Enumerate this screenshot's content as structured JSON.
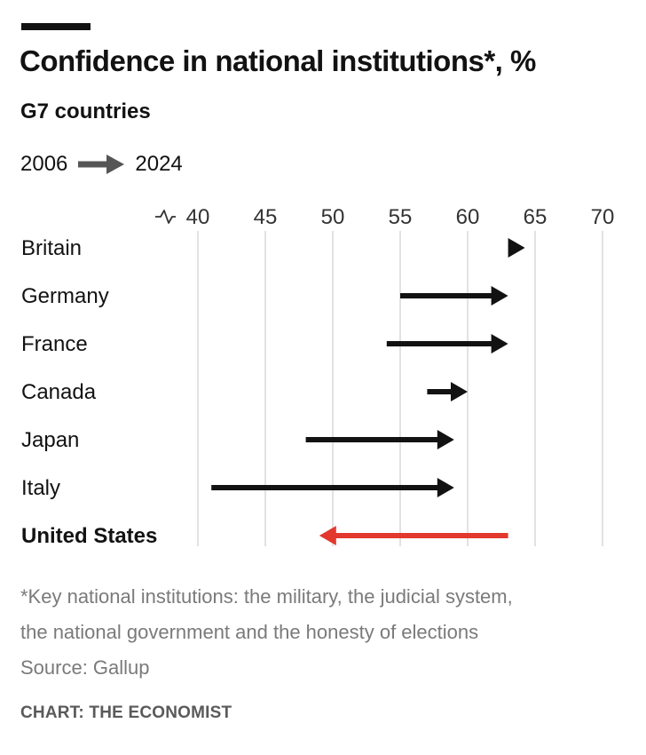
{
  "header": {
    "title": "Confidence in national institutions*, %",
    "subtitle": "G7 countries",
    "legend_start": "2006",
    "legend_end": "2024"
  },
  "chart_data": {
    "type": "dumbbell-arrow",
    "title": "Confidence in national institutions*, %",
    "subtitle": "G7 countries",
    "x_axis": {
      "ticks": [
        40,
        45,
        50,
        55,
        60,
        65,
        70
      ],
      "range": [
        40,
        70
      ],
      "broken_axis_marker": true,
      "grid": true
    },
    "series_labels": {
      "start": "2006",
      "end": "2024"
    },
    "rows": [
      {
        "country": "Britain",
        "start": 63,
        "end": 64,
        "highlight": false
      },
      {
        "country": "Germany",
        "start": 55,
        "end": 63,
        "highlight": false
      },
      {
        "country": "France",
        "start": 54,
        "end": 63,
        "highlight": false
      },
      {
        "country": "Canada",
        "start": 57,
        "end": 60,
        "highlight": false
      },
      {
        "country": "Japan",
        "start": 48,
        "end": 59,
        "highlight": false
      },
      {
        "country": "Italy",
        "start": 41,
        "end": 59,
        "highlight": false
      },
      {
        "country": "United States",
        "start": 63,
        "end": 49,
        "highlight": true
      }
    ],
    "colors": {
      "default": "#121212",
      "highlight": "#e3382e",
      "grid": "#d9d9d9",
      "axis_text": "#333333"
    }
  },
  "footer": {
    "footnote_line1": "*Key national institutions: the military, the judicial system,",
    "footnote_line2": "the national government and the honesty of elections",
    "source": "Source: Gallup",
    "credit": "CHART: THE ECONOMIST"
  }
}
